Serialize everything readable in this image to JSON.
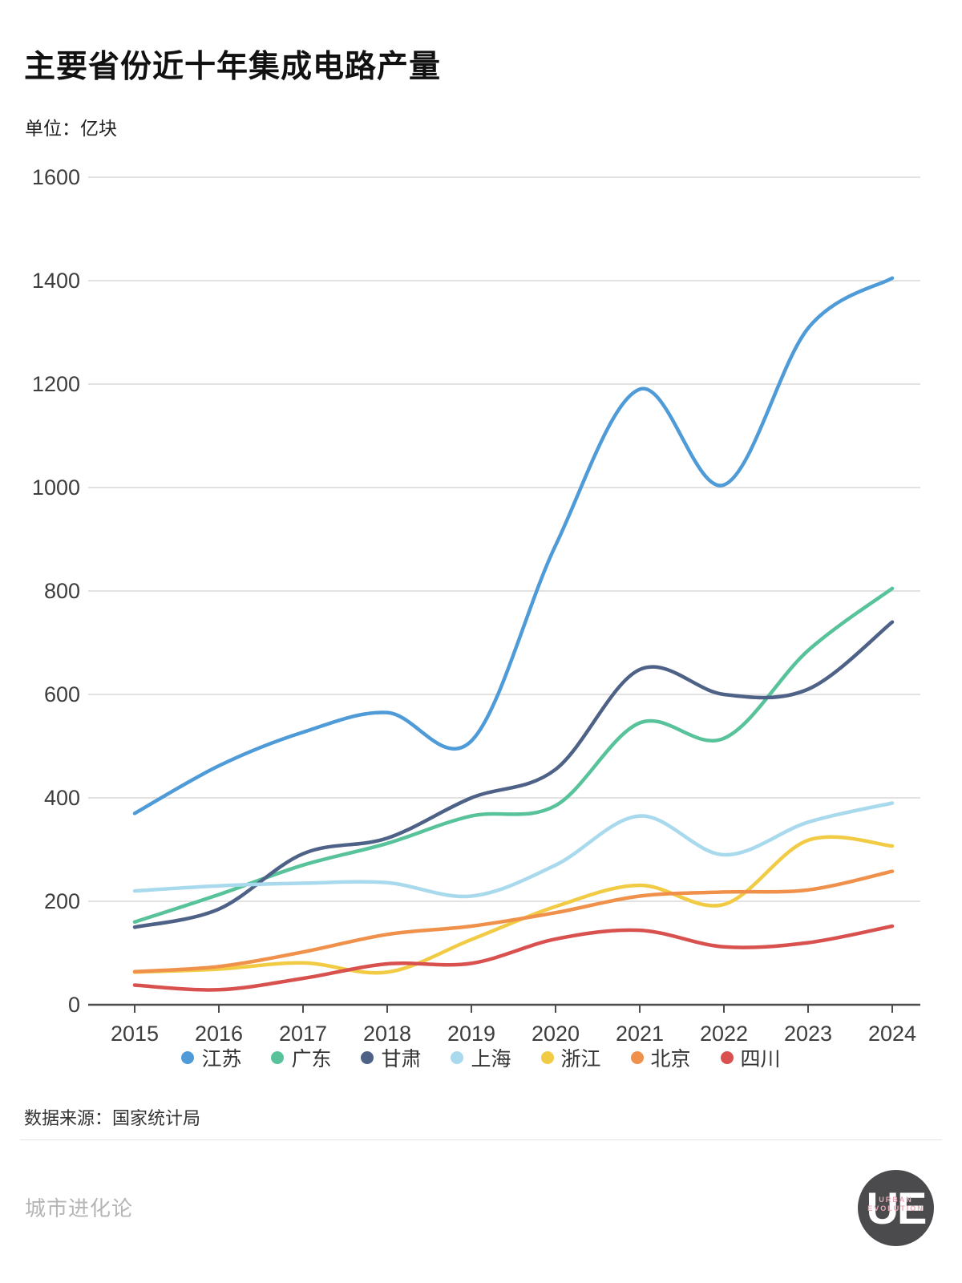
{
  "header": {
    "title": "主要省份近十年集成电路产量",
    "unit": "单位：亿块"
  },
  "chart_data": {
    "type": "line",
    "x": [
      "2015",
      "2016",
      "2017",
      "2018",
      "2019",
      "2020",
      "2021",
      "2022",
      "2023",
      "2024"
    ],
    "series": [
      {
        "key": "jiangsu",
        "name": "江苏",
        "color": "#4e9bd8",
        "values": [
          370,
          462,
          527,
          565,
          510,
          888,
          1190,
          1005,
          1308,
          1405
        ]
      },
      {
        "key": "guangdong",
        "name": "广东",
        "color": "#58c39a",
        "values": [
          160,
          213,
          270,
          312,
          365,
          385,
          545,
          515,
          685,
          805
        ]
      },
      {
        "key": "gansu",
        "name": "甘肃",
        "color": "#4e6186",
        "values": [
          150,
          185,
          292,
          322,
          400,
          455,
          648,
          600,
          610,
          740
        ]
      },
      {
        "key": "shanghai",
        "name": "上海",
        "color": "#a8d9ec",
        "values": [
          220,
          230,
          235,
          236,
          210,
          270,
          365,
          290,
          353,
          390
        ]
      },
      {
        "key": "zhejiang",
        "name": "浙江",
        "color": "#f2cb44",
        "values": [
          63,
          69,
          81,
          63,
          126,
          190,
          231,
          194,
          318,
          307
        ]
      },
      {
        "key": "beijing",
        "name": "北京",
        "color": "#f0914b",
        "values": [
          64,
          74,
          102,
          136,
          152,
          178,
          210,
          218,
          222,
          258
        ]
      },
      {
        "key": "sichuan",
        "name": "四川",
        "color": "#d8514e",
        "values": [
          38,
          29,
          51,
          79,
          80,
          127,
          144,
          112,
          120,
          152
        ]
      }
    ],
    "title": "主要省份近十年集成电路产量",
    "xlabel": "",
    "ylabel": "亿块",
    "ylim": [
      0,
      1600
    ],
    "ytick_step": 200,
    "grid": "horizontal",
    "legend_position": "bottom"
  },
  "footer": {
    "source": "数据来源：国家统计局",
    "watermark": "城市进化论",
    "logo_monogram": "UE",
    "logo_text_line1": "URBAN",
    "logo_text_line2": "EVOLUTION"
  }
}
